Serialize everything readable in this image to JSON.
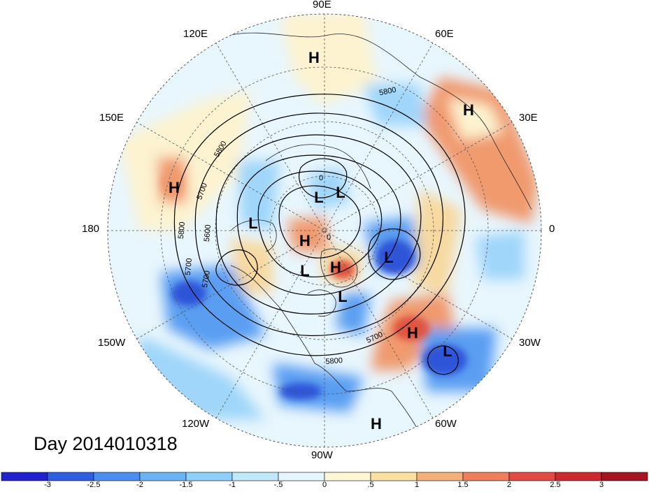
{
  "map": {
    "projection": "polar stereographic (north)",
    "longitude_labels": [
      "90E",
      "60E",
      "30E",
      "0",
      "30W",
      "60W",
      "90W",
      "120W",
      "150W",
      "180",
      "150E",
      "120E"
    ],
    "date_label": "Day 2014010318",
    "contour_labels": [
      "5800",
      "5800",
      "5700",
      "5700",
      "5700",
      "5600",
      "5800",
      "5700",
      "5800",
      "0",
      "0"
    ],
    "pressure_centers": [
      "H",
      "H",
      "H",
      "H",
      "H",
      "H",
      "H",
      "L",
      "L",
      "L",
      "L",
      "L",
      "L",
      "L"
    ],
    "colorbar": {
      "tick_labels": [
        "-3",
        "-2.5",
        "-2",
        "-1.5",
        "-1",
        "-.5",
        "0",
        ".5",
        "1",
        "1.5",
        "2",
        "2.5",
        "3"
      ],
      "colors": [
        "#2222cc",
        "#2f5fe0",
        "#4a8ef0",
        "#6ab4f6",
        "#8fd0fa",
        "#bfe8fc",
        "#e6f6fd",
        "#fdf7d6",
        "#f9e0a0",
        "#f4b07a",
        "#ee7e5c",
        "#e24b44",
        "#cc2a2f",
        "#a41620"
      ]
    },
    "anomaly_palette": {
      "strong_negative": "#2f54d8",
      "negative": "#5a9ef2",
      "weak_negative": "#9fd6fa",
      "neutral_cool": "#e2f4fd",
      "neutral_warm": "#fdf3d0",
      "weak_positive": "#f7d9a0",
      "positive": "#f09a6e",
      "strong_positive": "#e0553f"
    }
  }
}
